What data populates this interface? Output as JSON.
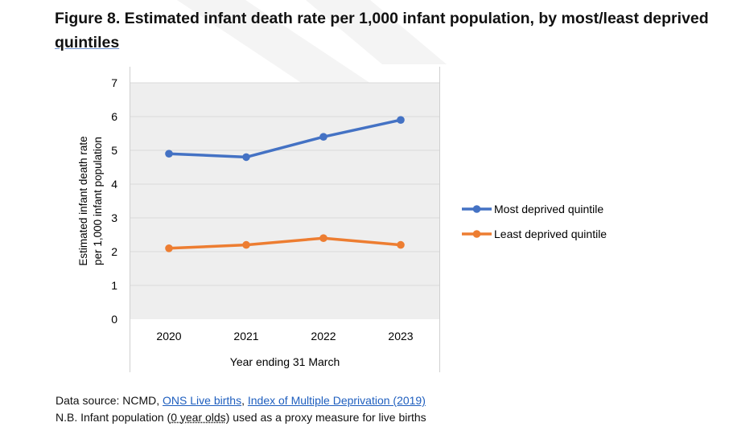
{
  "figure": {
    "title_main": "Figure 8. Estimated infant death rate per 1,000 infant population, by most/least deprived ",
    "title_underlined": "quintiles"
  },
  "chart_data": {
    "type": "line",
    "categories": [
      "2020",
      "2021",
      "2022",
      "2023"
    ],
    "series": [
      {
        "name": "Most deprived quintile",
        "values": [
          4.9,
          4.8,
          5.4,
          5.9
        ],
        "color": "#4472c4"
      },
      {
        "name": "Least deprived quintile",
        "values": [
          2.1,
          2.2,
          2.4,
          2.2
        ],
        "color": "#ed7d31"
      }
    ],
    "xlabel": "Year ending 31 March",
    "ylabel_line1": "Estimated infant death rate",
    "ylabel_line2": "per 1,000 infant population",
    "ylim": [
      0,
      7
    ],
    "yticks": [
      "0",
      "1",
      "2",
      "3",
      "4",
      "5",
      "6",
      "7"
    ],
    "grid": true,
    "legend_position": "right"
  },
  "notes": {
    "source_prefix": "Data source: NCMD, ",
    "link_live_births": "ONS Live births",
    "separator": ", ",
    "link_imd": "Index of Multiple Deprivation (2019)",
    "nb_prefix": "N.B. Infant population (",
    "nb_term": "0 year olds",
    "nb_suffix": ") used as a proxy measure for live births"
  },
  "colors": {
    "plot_background": "#eeeeee",
    "gridline": "#d9d9d9"
  }
}
